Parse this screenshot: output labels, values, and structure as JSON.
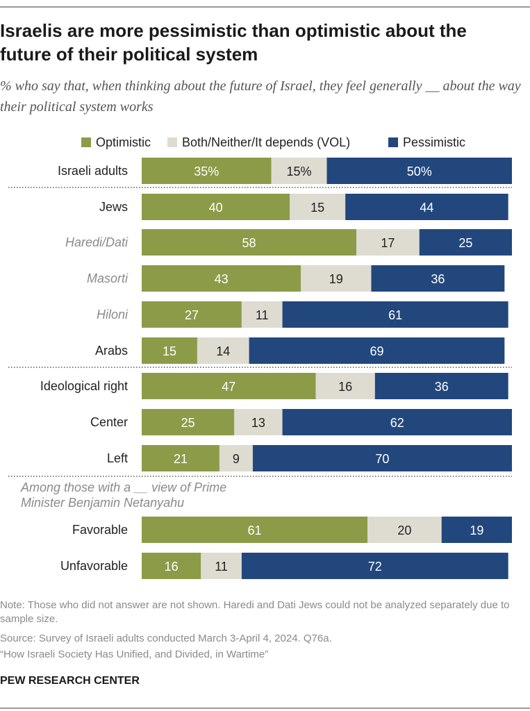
{
  "title": "Israelis are more pessimistic than optimistic about the future of their political system",
  "subtitle": "% who say that, when thinking about the future of Israel, they feel generally __ about the way their political system works",
  "colors": {
    "optimistic": "#8c9b48",
    "both": "#dedbd1",
    "pessimistic": "#22477d"
  },
  "chart_data": {
    "type": "bar",
    "orientation": "horizontal",
    "stacked": true,
    "series": [
      {
        "name": "Optimistic",
        "key": "optimistic"
      },
      {
        "name": "Both/Neither/It depends (VOL)",
        "key": "both"
      },
      {
        "name": "Pessimistic",
        "key": "pessimistic"
      }
    ],
    "rows": [
      {
        "label": "Israeli adults",
        "italic": false,
        "values": [
          35,
          15,
          50
        ],
        "value_labels": [
          "35%",
          "15%",
          "50%"
        ]
      },
      {
        "label": "Jews",
        "italic": false,
        "values": [
          40,
          15,
          44
        ],
        "value_labels": [
          "40",
          "15",
          "44"
        ]
      },
      {
        "label": "Haredi/Dati",
        "italic": true,
        "values": [
          58,
          17,
          25
        ],
        "value_labels": [
          "58",
          "17",
          "25"
        ]
      },
      {
        "label": "Masorti",
        "italic": true,
        "values": [
          43,
          19,
          36
        ],
        "value_labels": [
          "43",
          "19",
          "36"
        ]
      },
      {
        "label": "Hiloni",
        "italic": true,
        "values": [
          27,
          11,
          61
        ],
        "value_labels": [
          "27",
          "11",
          "61"
        ]
      },
      {
        "label": "Arabs",
        "italic": false,
        "values": [
          15,
          14,
          69
        ],
        "value_labels": [
          "15",
          "14",
          "69"
        ]
      },
      {
        "label": "Ideological right",
        "italic": false,
        "values": [
          47,
          16,
          36
        ],
        "value_labels": [
          "47",
          "16",
          "36"
        ]
      },
      {
        "label": "Center",
        "italic": false,
        "values": [
          25,
          13,
          62
        ],
        "value_labels": [
          "25",
          "13",
          "62"
        ]
      },
      {
        "label": "Left",
        "italic": false,
        "values": [
          21,
          9,
          70
        ],
        "value_labels": [
          "21",
          "9",
          "70"
        ]
      },
      {
        "label": "Favorable",
        "italic": false,
        "values": [
          61,
          20,
          19
        ],
        "value_labels": [
          "61",
          "20",
          "19"
        ]
      },
      {
        "label": "Unfavorable",
        "italic": false,
        "values": [
          16,
          11,
          72
        ],
        "value_labels": [
          "16",
          "11",
          "72"
        ]
      }
    ],
    "group_caption": "Among those with a __ view of Prime Minister Benjamin Netanyahu",
    "xlim": [
      0,
      100
    ]
  },
  "footer": {
    "note": "Note: Those who did not answer are not shown. Haredi and Dati Jews could not be analyzed separately due to sample size.",
    "source": "Source: Survey of Israeli adults conducted March 3-April 4, 2024. Q76a.",
    "report": "“How Israeli Society Has Unified, and Divided, in Wartime”",
    "brand": "PEW RESEARCH CENTER"
  }
}
